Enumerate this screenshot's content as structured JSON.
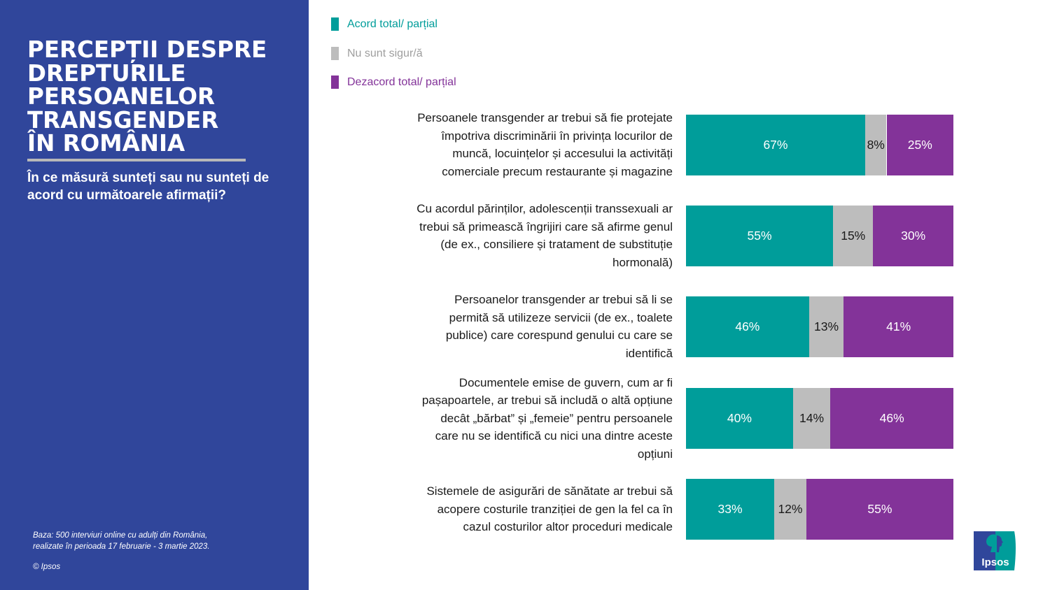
{
  "panel": {
    "title_lines": [
      "PERCEPȚII DESPRE",
      "DREPTURILE",
      "PERSOANELOR",
      "TRANSGENDER",
      "ÎN ROMÂNIA"
    ],
    "subtitle": "În ce măsură sunteți sau nu sunteți de acord cu următoarele afirmații?",
    "footnote_lines": [
      "Baza: 500 interviuri online cu adulți din România,",
      "realizate în perioada 17 februarie - 3 martie 2023."
    ],
    "copyright": "© Ipsos"
  },
  "logo": {
    "text": "Ipsos"
  },
  "colors": {
    "panel_bg": "#30469b",
    "agree": "#009d9a",
    "unsure": "#bdbdbd",
    "disagree": "#833399"
  },
  "chart_data": {
    "type": "bar",
    "orientation": "horizontal",
    "stacked": true,
    "title": "PERCEPȚII DESPRE DREPTURILE PERSOANELOR TRANSGENDER ÎN ROMÂNIA",
    "subtitle": "În ce măsură sunteți sau nu sunteți de acord cu următoarele afirmații?",
    "xlim": [
      0,
      100
    ],
    "unit": "%",
    "legend_position": "top-left",
    "categories": [
      "Persoanele transgender ar trebui să fie protejate împotriva discriminării în privința locurilor de muncă, locuințelor și accesului la activități comerciale precum restaurante și magazine",
      "Cu acordul părinților, adolescenții transsexuali ar trebui să primească îngrijiri care să afirme genul (de ex., consiliere și tratament de substituție hormonală)",
      "Persoanelor transgender ar trebui să li se permită să utilizeze servicii (de ex., toalete publice) care corespund genului cu care se identifică",
      "Documentele emise de guvern, cum ar fi pașapoartele, ar trebui să includă o altă opțiune decât „bărbat” și „femeie” pentru persoanele care nu se identifică cu nici una dintre aceste opțiuni",
      "Sistemele de asigurări de sănătate ar trebui să acopere costurile tranziției de gen la fel ca în cazul costurilor altor proceduri medicale"
    ],
    "category_lines": [
      [
        "Persoanele transgender ar trebui să fie protejate",
        "împotriva discriminării în privința locurilor de",
        "muncă, locuințelor și accesului la activități",
        "comerciale precum restaurante și magazine"
      ],
      [
        "Cu acordul părinților, adolescenții transsexuali ar",
        "trebui să primească îngrijiri care să afirme genul",
        "(de ex., consiliere și tratament de substituție",
        "hormonală)"
      ],
      [
        "Persoanelor transgender ar trebui să li se",
        "permită să utilizeze servicii (de ex., toalete",
        "publice) care corespund genului cu care se",
        "identifică"
      ],
      [
        "Documentele emise de guvern, cum ar fi",
        "pașapoartele, ar trebui să includă o altă opțiune",
        "decât „bărbat” și „femeie” pentru persoanele",
        "care nu se identifică cu nici una dintre aceste",
        "opțiuni"
      ],
      [
        "Sistemele de asigurări de sănătate ar trebui să",
        "acopere costurile tranziției de gen la fel ca în",
        "cazul costurilor altor proceduri medicale"
      ]
    ],
    "series": [
      {
        "name": "Acord total/ parțial",
        "color": "#009d9a",
        "label_color": "#ffffff",
        "values": [
          67,
          55,
          46,
          40,
          33
        ]
      },
      {
        "name": "Nu sunt sigur/ă",
        "color": "#bdbdbd",
        "label_color": "#1a1a1a",
        "values": [
          8,
          15,
          13,
          14,
          12
        ]
      },
      {
        "name": "Dezacord total/ parțial",
        "color": "#833399",
        "label_color": "#ffffff",
        "values": [
          25,
          30,
          41,
          46,
          55
        ]
      }
    ],
    "legend": [
      {
        "label": "Acord total/ parțial",
        "color": "#009d9a",
        "text_color": "#009d9a"
      },
      {
        "label": "Nu sunt sigur/ă",
        "color": "#bdbdbd",
        "text_color": "#9e9e9e"
      },
      {
        "label": "Dezacord total/ parțial",
        "color": "#833399",
        "text_color": "#833399"
      }
    ]
  }
}
